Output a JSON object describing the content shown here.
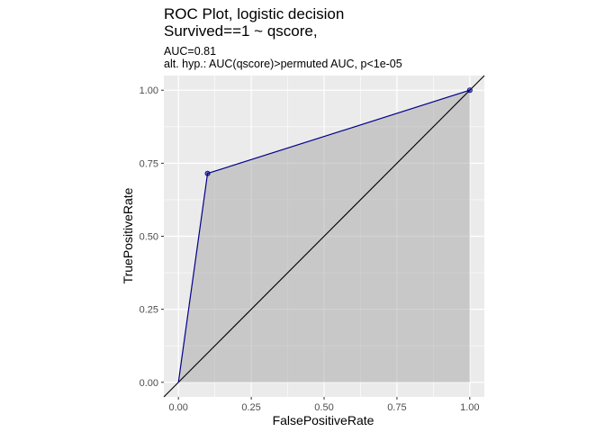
{
  "chart_data": {
    "type": "line",
    "title_line1": "ROC Plot, logistic decision",
    "title_line2": "Survived==1 ~ qscore,",
    "subtitle_line1": "AUC=0.81",
    "subtitle_line2": "alt. hyp.: AUC(qscore)>permuted AUC, p<1e-05",
    "xlabel": "FalsePositiveRate",
    "ylabel": "TruePositiveRate",
    "xlim": [
      -0.05,
      1.05
    ],
    "ylim": [
      -0.05,
      1.05
    ],
    "x_ticks": [
      0,
      0.25,
      0.5,
      0.75,
      1
    ],
    "x_tick_labels": [
      "0.00",
      "0.25",
      "0.50",
      "0.75",
      "1.00"
    ],
    "y_ticks": [
      0,
      0.25,
      0.5,
      0.75,
      1
    ],
    "y_tick_labels": [
      "0.00",
      "0.25",
      "0.50",
      "0.75",
      "1.00"
    ],
    "grid": true,
    "series": [
      {
        "x": [
          0,
          0.1,
          1
        ],
        "y": [
          0,
          0.715,
          1
        ],
        "color": "#00008b",
        "shaded": true,
        "points_shown": [
          [
            0.1,
            0.715
          ],
          [
            1,
            1
          ]
        ]
      }
    ],
    "reference_line": {
      "x": [
        -0.05,
        1.05
      ],
      "y": [
        -0.05,
        1.05
      ],
      "color": "#000000"
    }
  }
}
